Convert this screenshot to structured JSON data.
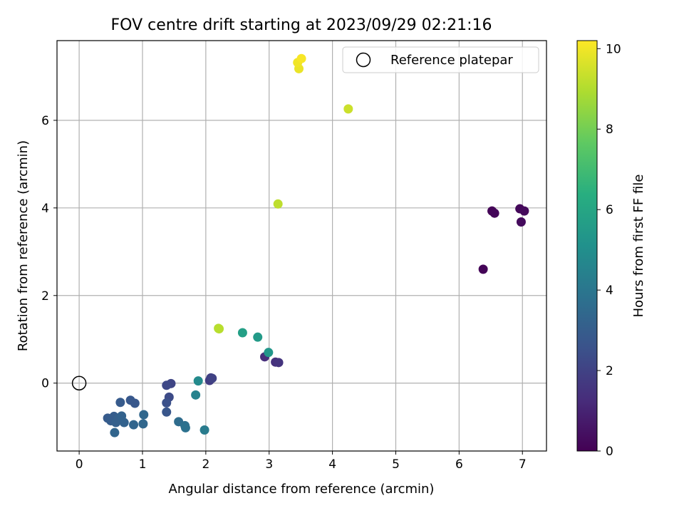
{
  "chart_data": {
    "type": "scatter",
    "title": "FOV centre drift starting at 2023/09/29 02:21:16",
    "xlabel": "Angular distance from reference (arcmin)",
    "ylabel": "Rotation from reference (arcmin)",
    "xlim": [
      -0.35,
      7.38
    ],
    "ylim": [
      -1.55,
      7.82
    ],
    "xticks": [
      0,
      1,
      2,
      3,
      4,
      5,
      6,
      7
    ],
    "yticks": [
      0,
      2,
      4,
      6
    ],
    "grid": true,
    "legend": {
      "placement": "top-right",
      "entries": [
        "Reference platepar"
      ]
    },
    "reference_point": {
      "x": 0,
      "y": 0,
      "label": "Reference platepar"
    },
    "colorbar": {
      "label": "Hours from first FF file",
      "range": [
        0,
        10.2
      ],
      "ticks": [
        0,
        2,
        4,
        6,
        8,
        10
      ],
      "colormap": "viridis"
    },
    "points": [
      {
        "x": 6.38,
        "y": 2.6,
        "c": 0.1
      },
      {
        "x": 6.52,
        "y": 3.93,
        "c": 0.1
      },
      {
        "x": 6.56,
        "y": 3.88,
        "c": 0.15
      },
      {
        "x": 6.96,
        "y": 3.98,
        "c": 0.2
      },
      {
        "x": 7.03,
        "y": 3.93,
        "c": 0.25
      },
      {
        "x": 6.98,
        "y": 3.68,
        "c": 0.3
      },
      {
        "x": 2.93,
        "y": 0.6,
        "c": 1.3
      },
      {
        "x": 3.1,
        "y": 0.48,
        "c": 1.4
      },
      {
        "x": 3.15,
        "y": 0.47,
        "c": 1.5
      },
      {
        "x": 2.06,
        "y": 0.06,
        "c": 1.8
      },
      {
        "x": 2.08,
        "y": 0.12,
        "c": 1.9
      },
      {
        "x": 2.1,
        "y": 0.11,
        "c": 2.0
      },
      {
        "x": 1.45,
        "y": -0.01,
        "c": 2.1
      },
      {
        "x": 1.38,
        "y": -0.05,
        "c": 2.2
      },
      {
        "x": 1.42,
        "y": -0.32,
        "c": 2.3
      },
      {
        "x": 1.38,
        "y": -0.45,
        "c": 2.5
      },
      {
        "x": 1.38,
        "y": -0.66,
        "c": 2.7
      },
      {
        "x": 0.88,
        "y": -0.46,
        "c": 2.8
      },
      {
        "x": 0.81,
        "y": -0.39,
        "c": 2.8
      },
      {
        "x": 0.65,
        "y": -0.44,
        "c": 2.9
      },
      {
        "x": 0.45,
        "y": -0.8,
        "c": 2.9
      },
      {
        "x": 0.5,
        "y": -0.86,
        "c": 3.0
      },
      {
        "x": 0.55,
        "y": -0.76,
        "c": 3.0
      },
      {
        "x": 0.58,
        "y": -0.9,
        "c": 3.1
      },
      {
        "x": 0.62,
        "y": -0.8,
        "c": 3.1
      },
      {
        "x": 0.67,
        "y": -0.75,
        "c": 3.2
      },
      {
        "x": 0.71,
        "y": -0.9,
        "c": 3.2
      },
      {
        "x": 0.56,
        "y": -1.13,
        "c": 3.3
      },
      {
        "x": 0.86,
        "y": -0.95,
        "c": 3.3
      },
      {
        "x": 1.01,
        "y": -0.93,
        "c": 3.4
      },
      {
        "x": 1.02,
        "y": -0.72,
        "c": 3.4
      },
      {
        "x": 1.57,
        "y": -0.88,
        "c": 3.6
      },
      {
        "x": 1.67,
        "y": -0.97,
        "c": 3.7
      },
      {
        "x": 1.68,
        "y": -1.02,
        "c": 3.8
      },
      {
        "x": 1.98,
        "y": -1.07,
        "c": 4.2
      },
      {
        "x": 1.84,
        "y": -0.27,
        "c": 4.5
      },
      {
        "x": 1.88,
        "y": 0.05,
        "c": 4.8
      },
      {
        "x": 2.99,
        "y": 0.7,
        "c": 5.3
      },
      {
        "x": 2.82,
        "y": 1.05,
        "c": 5.5
      },
      {
        "x": 2.58,
        "y": 1.15,
        "c": 5.7
      },
      {
        "x": 2.2,
        "y": 1.25,
        "c": 9.0
      },
      {
        "x": 2.21,
        "y": 1.24,
        "c": 9.1
      },
      {
        "x": 3.14,
        "y": 4.09,
        "c": 9.2
      },
      {
        "x": 4.25,
        "y": 6.26,
        "c": 9.4
      },
      {
        "x": 3.47,
        "y": 7.18,
        "c": 9.9
      },
      {
        "x": 3.45,
        "y": 7.32,
        "c": 10.0
      },
      {
        "x": 3.51,
        "y": 7.41,
        "c": 10.1
      }
    ]
  }
}
